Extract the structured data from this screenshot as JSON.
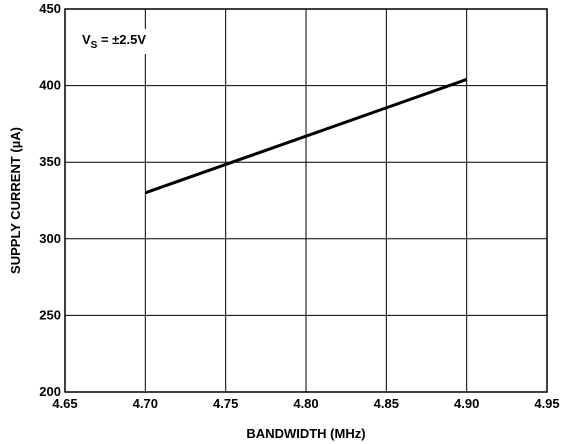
{
  "chart_data": {
    "type": "line",
    "title": "",
    "xlabel": "BANDWIDTH (MHz)",
    "ylabel": "SUPPLY CURRENT (µA)",
    "xlim": [
      4.65,
      4.95
    ],
    "ylim": [
      200,
      450
    ],
    "x_ticks": [
      "4.65",
      "4.70",
      "4.75",
      "4.80",
      "4.85",
      "4.90",
      "4.95"
    ],
    "y_ticks": [
      "450",
      "400",
      "350",
      "300",
      "250",
      "200"
    ],
    "grid": true,
    "annotation": {
      "main": "V",
      "sub": "S",
      "rest": " = ±2.5V"
    },
    "series": [
      {
        "x": [
          4.7,
          4.9
        ],
        "y": [
          330,
          404
        ]
      }
    ],
    "colors": {
      "line": "#000000",
      "grid": "#000000",
      "background": "#ffffff"
    }
  }
}
